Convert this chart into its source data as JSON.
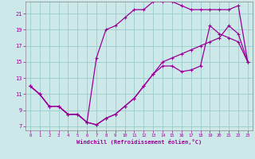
{
  "xlabel": "Windchill (Refroidissement éolien,°C)",
  "background_color": "#cce8e8",
  "grid_color": "#99cccc",
  "line_color": "#990099",
  "xlim": [
    -0.5,
    23.5
  ],
  "ylim": [
    6.5,
    22.5
  ],
  "xticks": [
    0,
    1,
    2,
    3,
    4,
    5,
    6,
    7,
    8,
    9,
    10,
    11,
    12,
    13,
    14,
    15,
    16,
    17,
    18,
    19,
    20,
    21,
    22,
    23
  ],
  "yticks": [
    7,
    9,
    11,
    13,
    15,
    17,
    19,
    21
  ],
  "line1_x": [
    0,
    1,
    2,
    3,
    4,
    5,
    6,
    7,
    8,
    9,
    10,
    11,
    12,
    13,
    14,
    15,
    16,
    17,
    18,
    19,
    20,
    21,
    22,
    23
  ],
  "line1_y": [
    12,
    11,
    9.5,
    9.5,
    8.5,
    8.5,
    7.5,
    7.2,
    8.0,
    8.5,
    9.5,
    10.5,
    12,
    13.5,
    14.5,
    14.5,
    13.8,
    14.0,
    14.5,
    19.5,
    18.5,
    18.0,
    17.5,
    15.0
  ],
  "line2_x": [
    0,
    1,
    2,
    3,
    4,
    5,
    6,
    7,
    8,
    9,
    10,
    11,
    12,
    13,
    14,
    15,
    16,
    17,
    18,
    19,
    20,
    21,
    22,
    23
  ],
  "line2_y": [
    12,
    11,
    9.5,
    9.5,
    8.5,
    8.5,
    7.5,
    15.5,
    19.0,
    19.5,
    20.5,
    21.5,
    21.5,
    22.5,
    22.5,
    22.5,
    22.0,
    21.5,
    21.5,
    21.5,
    21.5,
    21.5,
    22.0,
    15.0
  ],
  "line3_x": [
    0,
    1,
    2,
    3,
    4,
    5,
    6,
    7,
    8,
    9,
    10,
    11,
    12,
    13,
    14,
    15,
    16,
    17,
    18,
    19,
    20,
    21,
    22,
    23
  ],
  "line3_y": [
    12,
    11,
    9.5,
    9.5,
    8.5,
    8.5,
    7.5,
    7.2,
    8.0,
    8.5,
    9.5,
    10.5,
    12,
    13.5,
    15.0,
    15.5,
    16.0,
    16.5,
    17.0,
    17.5,
    18.0,
    19.5,
    18.5,
    15.0
  ]
}
